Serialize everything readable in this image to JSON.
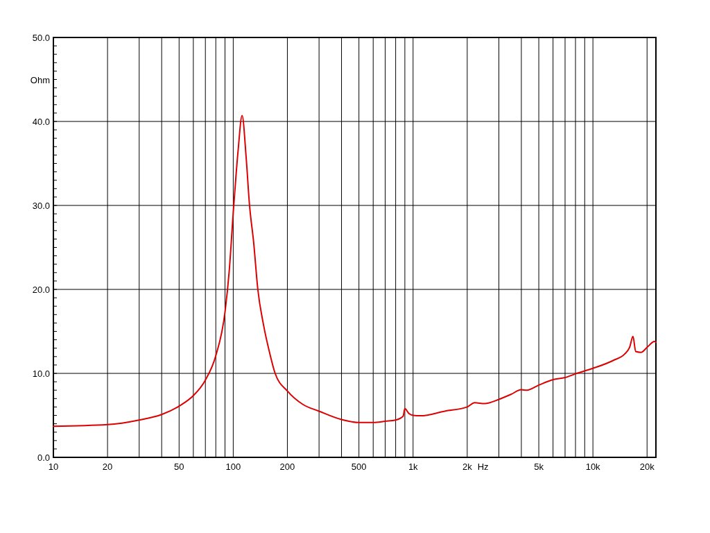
{
  "chart_data": {
    "type": "line",
    "xlabel": "Hz",
    "ylabel": "Ohm",
    "log": "x",
    "grid": true,
    "marker": "none",
    "line_style": "solid",
    "xlim": [
      10,
      22400
    ],
    "ylim": [
      0,
      50
    ],
    "xticks": [
      10,
      {
        "value": 20,
        "label": "20"
      },
      {
        "value": 30,
        "label": null
      },
      {
        "value": 40,
        "label": null
      },
      50,
      {
        "value": 60,
        "label": null
      },
      {
        "value": 70,
        "label": null
      },
      {
        "value": 80,
        "label": null
      },
      {
        "value": 90,
        "label": null
      },
      100,
      200,
      {
        "value": 300,
        "label": null
      },
      {
        "value": 400,
        "label": null
      },
      500,
      {
        "value": 600,
        "label": null
      },
      {
        "value": 700,
        "label": null
      },
      {
        "value": 800,
        "label": null
      },
      {
        "value": 900,
        "label": null
      },
      {
        "value": 1000,
        "label": "1k"
      },
      {
        "value": 2000,
        "label": "2k"
      },
      {
        "value": 3000,
        "label": null
      },
      {
        "value": 4000,
        "label": null
      },
      {
        "value": 5000,
        "label": "5k"
      },
      {
        "value": 6000,
        "label": null
      },
      {
        "value": 7000,
        "label": null
      },
      {
        "value": 8000,
        "label": null
      },
      {
        "value": 9000,
        "label": null
      },
      {
        "value": 10000,
        "label": "10k"
      },
      {
        "value": 20000,
        "label": "20k"
      }
    ],
    "yticks": [
      {
        "value": 0,
        "label": "0.0"
      },
      {
        "value": 10,
        "label": "10.0"
      },
      {
        "value": 20,
        "label": "20.0"
      },
      {
        "value": 30,
        "label": "30.0"
      },
      {
        "value": 40,
        "label": "40.0"
      },
      {
        "value": 50,
        "label": "50.0"
      }
    ],
    "x": [
      10,
      20,
      30,
      40,
      50,
      60,
      70,
      80,
      90,
      95,
      100,
      106.4,
      112,
      118,
      123,
      130,
      137,
      147,
      160,
      171,
      200,
      244,
      300,
      400,
      500,
      600,
      700,
      800,
      880,
      900,
      950,
      1000,
      1100,
      1500,
      2000,
      2200,
      2500,
      3000,
      3500,
      4000,
      4300,
      5000,
      6000,
      7000,
      8000,
      10000,
      13000,
      15000,
      16000,
      16700,
      17300,
      18500,
      20000,
      22000,
      22400
    ],
    "series": [
      {
        "color": "#dd0000",
        "values": [
          3.7,
          3.9,
          4.45,
          5.1,
          6.1,
          7.35,
          9.2,
          12.1,
          17.3,
          22.2,
          29.1,
          36.5,
          40.7,
          35.7,
          30.2,
          25.5,
          20.0,
          15.9,
          12.3,
          10.0,
          7.9,
          6.3,
          5.5,
          4.5,
          4.15,
          4.15,
          4.3,
          4.45,
          4.9,
          5.8,
          5.2,
          5.0,
          4.95,
          5.5,
          6.0,
          6.5,
          6.4,
          6.9,
          7.5,
          8.05,
          8.0,
          8.6,
          9.25,
          9.5,
          9.95,
          10.6,
          11.55,
          12.3,
          13.1,
          14.4,
          12.6,
          12.5,
          13.1,
          13.8,
          13.7
        ]
      }
    ]
  }
}
